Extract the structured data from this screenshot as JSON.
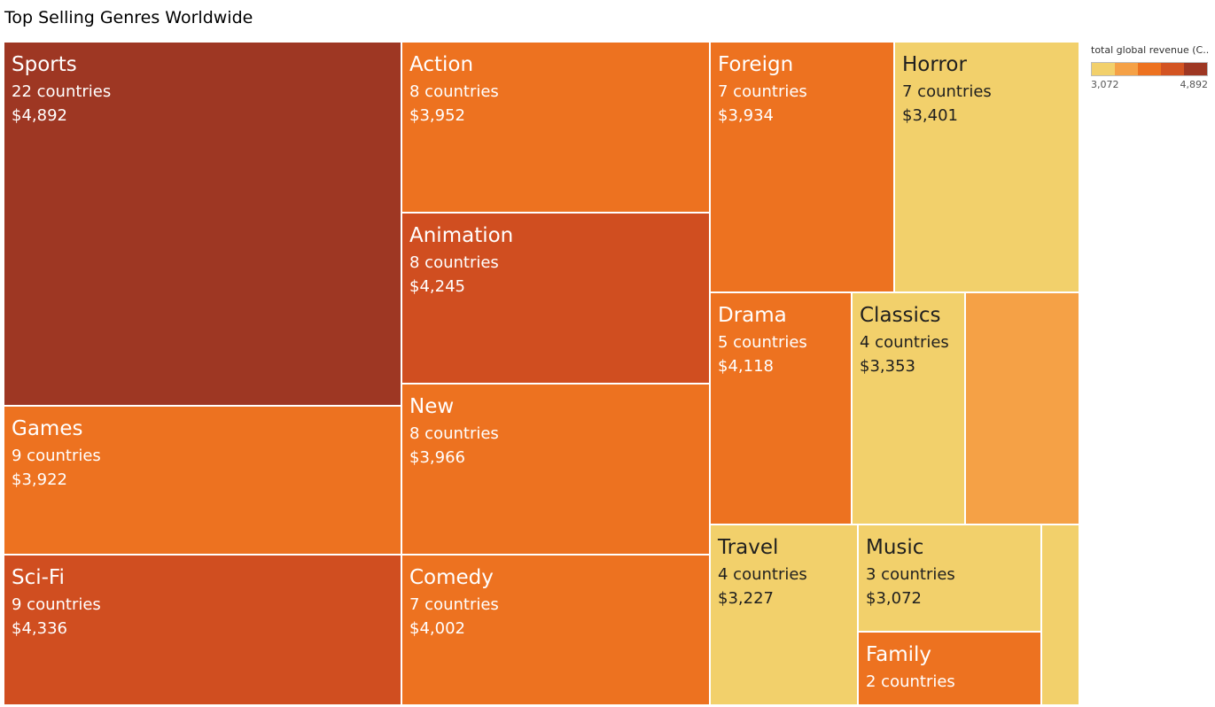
{
  "title": "Top Selling Genres Worldwide",
  "legend": {
    "title": "total global revenue (C..",
    "min_label": "3,072",
    "max_label": "4,892",
    "colors": [
      "#f2d06b",
      "#f5a146",
      "#ed7220",
      "#d35422",
      "#9e3723"
    ]
  },
  "colors": {
    "yellow": "#f2d06b",
    "lightorange": "#f5a146",
    "orange": "#ed7220",
    "redorange": "#d04e20",
    "brown": "#9e3723"
  },
  "chart_data": {
    "type": "treemap",
    "title": "Top Selling Genres Worldwide",
    "color_measure": "total global revenue (C..",
    "color_range": [
      3072,
      4892
    ],
    "items": [
      {
        "name": "Sports",
        "countries": "22 countries",
        "revenue": "$4,892",
        "countries_value": 22,
        "revenue_value": 4892
      },
      {
        "name": "Games",
        "countries": "9 countries",
        "revenue": "$3,922",
        "countries_value": 9,
        "revenue_value": 3922
      },
      {
        "name": "Sci-Fi",
        "countries": "9 countries",
        "revenue": "$4,336",
        "countries_value": 9,
        "revenue_value": 4336
      },
      {
        "name": "Action",
        "countries": "8 countries",
        "revenue": "$3,952",
        "countries_value": 8,
        "revenue_value": 3952
      },
      {
        "name": "Animation",
        "countries": "8 countries",
        "revenue": "$4,245",
        "countries_value": 8,
        "revenue_value": 4245
      },
      {
        "name": "New",
        "countries": "8 countries",
        "revenue": "$3,966",
        "countries_value": 8,
        "revenue_value": 3966
      },
      {
        "name": "Comedy",
        "countries": "7 countries",
        "revenue": "$4,002",
        "countries_value": 7,
        "revenue_value": 4002
      },
      {
        "name": "Foreign",
        "countries": "7 countries",
        "revenue": "$3,934",
        "countries_value": 7,
        "revenue_value": 3934
      },
      {
        "name": "Horror",
        "countries": "7 countries",
        "revenue": "$3,401",
        "countries_value": 7,
        "revenue_value": 3401
      },
      {
        "name": "Drama",
        "countries": "5 countries",
        "revenue": "$4,118",
        "countries_value": 5,
        "revenue_value": 4118
      },
      {
        "name": "Classics",
        "countries": "4 countries",
        "revenue": "$3,353",
        "countries_value": 4,
        "revenue_value": 3353
      },
      {
        "name": "",
        "countries": "",
        "revenue": "",
        "countries_value": 4,
        "revenue_value": null
      },
      {
        "name": "Travel",
        "countries": "4 countries",
        "revenue": "$3,227",
        "countries_value": 4,
        "revenue_value": 3227
      },
      {
        "name": "Music",
        "countries": "3 countries",
        "revenue": "$3,072",
        "countries_value": 3,
        "revenue_value": 3072
      },
      {
        "name": "Family",
        "countries": "2 countries",
        "revenue": "",
        "countries_value": 2,
        "revenue_value": null
      },
      {
        "name": "",
        "countries": "",
        "revenue": "",
        "countries_value": null,
        "revenue_value": null
      }
    ]
  }
}
